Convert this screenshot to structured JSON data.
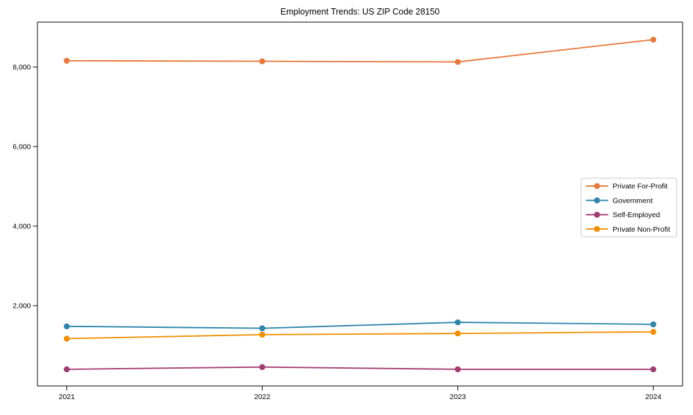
{
  "page": {
    "title": "Employment Trends: US ZIP Code 28150"
  },
  "chart_data": {
    "type": "line",
    "title": "Employment Trends: US ZIP Code 28150",
    "x": [
      2021,
      2022,
      2023,
      2024
    ],
    "x_tick_labels": [
      "2021",
      "2022",
      "2023",
      "2024"
    ],
    "y_ticks": [
      2000,
      4000,
      6000,
      8000
    ],
    "y_tick_labels": [
      "2,000",
      "4,000",
      "6,000",
      "8,000"
    ],
    "xlim": [
      2020.85,
      2024.15
    ],
    "ylim": [
      -20,
      9130
    ],
    "grid": false,
    "legend_position": "center right",
    "marker": "circle",
    "axis_color": "#000000",
    "legend_border_color": "#cccccc",
    "series": [
      {
        "name": "Private For-Profit",
        "color": "#E8793D",
        "values": [
          8160,
          8145,
          8130,
          8690
        ]
      },
      {
        "name": "Government",
        "color": "#2E86AB",
        "values": [
          1480,
          1430,
          1580,
          1530
        ]
      },
      {
        "name": "Self-Employed",
        "color": "#A23B72",
        "values": [
          400,
          455,
          400,
          400
        ]
      },
      {
        "name": "Private Non-Profit",
        "color": "#F18F01",
        "values": [
          1170,
          1270,
          1300,
          1340
        ]
      }
    ]
  }
}
